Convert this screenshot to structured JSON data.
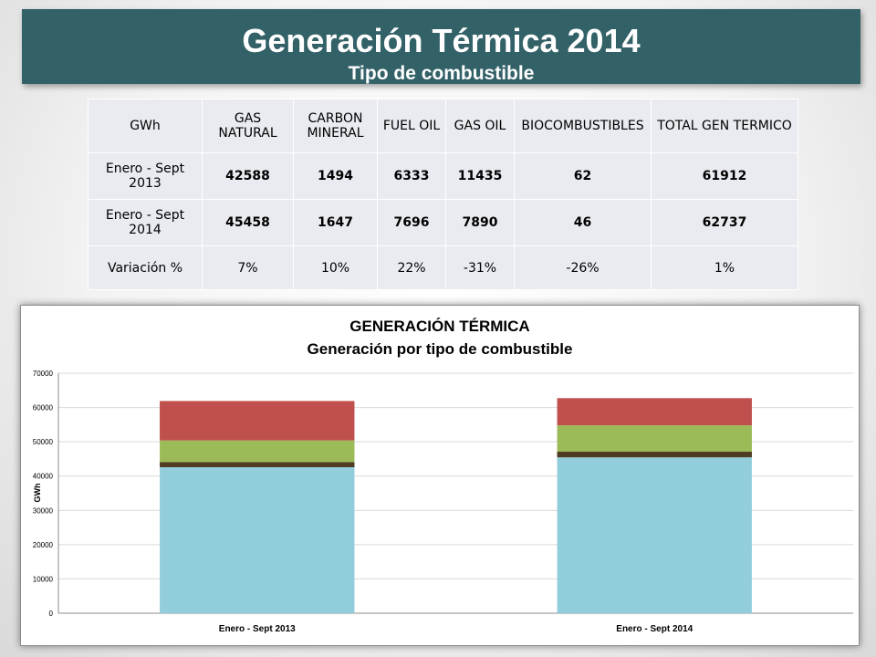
{
  "header": {
    "title": "Generación Térmica 2014",
    "subtitle": "Tipo de combustible"
  },
  "table": {
    "headers": [
      "GWh",
      "GAS NATURAL",
      "CARBON MINERAL",
      "FUEL OIL",
      "GAS OIL",
      "BIOCOMBUSTIBLES",
      "TOTAL GEN TERMICO"
    ],
    "rows": [
      [
        "Enero - Sept 2013",
        "42588",
        "1494",
        "6333",
        "11435",
        "62",
        "61912"
      ],
      [
        "Enero - Sept 2014",
        "45458",
        "1647",
        "7696",
        "7890",
        "46",
        "62737"
      ],
      [
        "Variación %",
        "7%",
        "10%",
        "22%",
        "-31%",
        "-26%",
        "1%"
      ]
    ]
  },
  "chart_data": {
    "type": "bar",
    "stacked": true,
    "title": "GENERACIÓN TÉRMICA",
    "subtitle": "Generación por tipo de combustible",
    "ylabel": "GWh",
    "xlabel": "",
    "categories": [
      "Enero - Sept 2013",
      "Enero - Sept 2014"
    ],
    "ylim": [
      0,
      70000
    ],
    "yticks": [
      0,
      10000,
      20000,
      30000,
      40000,
      50000,
      60000,
      70000
    ],
    "grid": true,
    "legend": "none",
    "series": [
      {
        "values": [
          42588,
          45458
        ],
        "color": "#92cddc"
      },
      {
        "values": [
          1494,
          1647
        ],
        "color": "#4f3b20"
      },
      {
        "values": [
          6333,
          7696
        ],
        "color": "#9bbb59"
      },
      {
        "values": [
          11435,
          7890
        ],
        "color": "#c0504d"
      },
      {
        "values": [
          62,
          46
        ],
        "color": "#c0504d"
      }
    ]
  }
}
